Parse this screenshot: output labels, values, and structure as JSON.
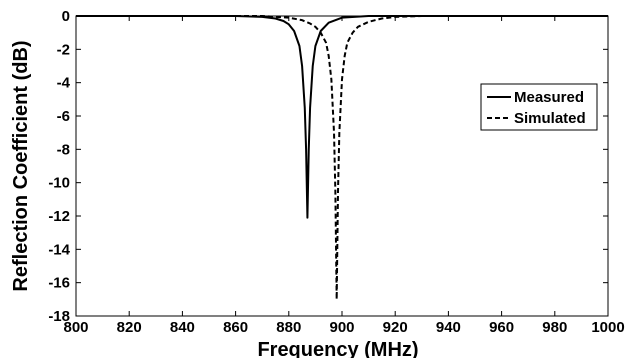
{
  "chart_data": {
    "type": "line",
    "xlabel": "Frequency (MHz)",
    "ylabel": "Reflection Coefficient (dB)",
    "xlim": [
      800,
      1000
    ],
    "ylim": [
      -18,
      0
    ],
    "xticks": [
      800,
      820,
      840,
      860,
      880,
      900,
      920,
      940,
      960,
      980,
      1000
    ],
    "yticks": [
      0,
      -2,
      -4,
      -6,
      -8,
      -10,
      -12,
      -14,
      -16,
      -18
    ],
    "grid": false,
    "legend_position": "right",
    "series": [
      {
        "name": "Measured",
        "style": "solid",
        "color": "#000000",
        "x": [
          800,
          860,
          870,
          875,
          878,
          880,
          882,
          884,
          885,
          886,
          886.5,
          887,
          887.5,
          888,
          889,
          890,
          892,
          895,
          900,
          910,
          1000
        ],
        "y": [
          0,
          0,
          -0.05,
          -0.15,
          -0.3,
          -0.5,
          -0.9,
          -1.8,
          -3.0,
          -5.5,
          -8.0,
          -12.1,
          -8.0,
          -5.5,
          -3.0,
          -1.8,
          -0.9,
          -0.4,
          -0.1,
          0,
          0
        ]
      },
      {
        "name": "Simulated",
        "style": "dashed",
        "color": "#000000",
        "x": [
          800,
          870,
          880,
          885,
          888,
          890,
          892,
          894,
          895,
          896,
          897,
          897.5,
          898,
          898.5,
          899,
          900,
          901,
          902,
          904,
          906,
          910,
          915,
          920,
          930,
          1000
        ],
        "y": [
          0,
          0,
          -0.1,
          -0.25,
          -0.45,
          -0.65,
          -1.0,
          -1.6,
          -2.4,
          -3.8,
          -7.0,
          -10.5,
          -17.0,
          -10.5,
          -7.0,
          -3.8,
          -2.4,
          -1.6,
          -1.0,
          -0.65,
          -0.35,
          -0.15,
          -0.05,
          0,
          0
        ]
      }
    ]
  }
}
